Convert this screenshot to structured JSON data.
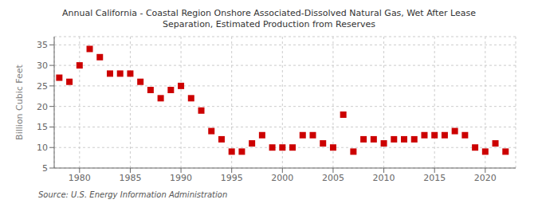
{
  "chart_data": {
    "type": "scatter",
    "title": "Annual California - Coastal Region Onshore Associated-Dissolved Natural Gas, Wet After Lease\nSeparation, Estimated Production from Reserves",
    "ylabel": "Billion Cubic Feet",
    "annotations": [
      "Source: U.S. Energy Information Administration"
    ],
    "color": "#cc0000",
    "marker": "square",
    "grid": true,
    "xlim": [
      1977.5,
      2023
    ],
    "xticks": [
      1980,
      1985,
      1990,
      1995,
      2000,
      2005,
      2010,
      2015,
      2020
    ],
    "ylim": [
      5,
      37
    ],
    "yticks": [
      5,
      10,
      15,
      20,
      25,
      30,
      35
    ],
    "x": [
      1978,
      1979,
      1980,
      1981,
      1982,
      1983,
      1984,
      1985,
      1986,
      1987,
      1988,
      1989,
      1990,
      1991,
      1992,
      1993,
      1994,
      1995,
      1996,
      1997,
      1998,
      1999,
      2000,
      2001,
      2002,
      2003,
      2004,
      2005,
      2006,
      2007,
      2008,
      2009,
      2010,
      2011,
      2012,
      2013,
      2014,
      2015,
      2016,
      2017,
      2018,
      2019,
      2020,
      2021,
      2022
    ],
    "values": [
      27,
      26,
      30,
      34,
      32,
      28,
      28,
      28,
      26,
      24,
      22,
      24,
      25,
      22,
      19,
      14,
      12,
      9,
      9,
      11,
      13,
      10,
      10,
      10,
      13,
      13,
      11,
      10,
      18,
      9,
      12,
      12,
      11,
      12,
      12,
      12,
      13,
      13,
      13,
      14,
      13,
      10,
      9,
      11,
      9
    ]
  }
}
